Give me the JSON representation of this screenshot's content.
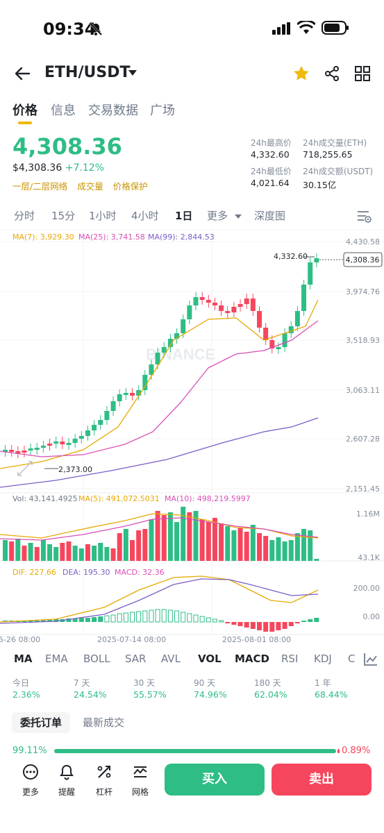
{
  "status_bar": {
    "time": "09:34"
  },
  "header": {
    "pair": "ETH/USDT"
  },
  "tabs": [
    "价格",
    "信息",
    "交易数据",
    "广场"
  ],
  "price": {
    "last": "4,308.36",
    "usd": "$4,308.36",
    "change": "+7.12%",
    "links": [
      "一层/二层网络",
      "成交量",
      "价格保护"
    ]
  },
  "stats": {
    "high_label": "24h最高价",
    "high": "4,332.60",
    "vol_eth_label": "24h成交量(ETH)",
    "vol_eth": "718,255.65",
    "low_label": "24h最低价",
    "low": "4,021.64",
    "vol_usdt_label": "24h成交额(USDT)",
    "vol_usdt": "30.15亿"
  },
  "timeframes": [
    "分时",
    "15分",
    "1小时",
    "4小时",
    "1日",
    "更多",
    "深度图"
  ],
  "chart": {
    "ma_labels": [
      "MA(7): 3,929.30",
      "MA(25): 3,741.58",
      "MA(99): 2,844.53"
    ],
    "y_labels": [
      "4,430.58",
      "3,974.76",
      "3,518.93",
      "3,063.11",
      "2,607.28",
      "2,151.45"
    ],
    "high_marker": "4,332.60",
    "low_marker": "2,373.00",
    "last_tag": "4,308.36",
    "watermark": "BINANCE",
    "vol_labels": [
      "Vol: 43,141.4925",
      "MA(5): 491,072.5031",
      "MA(10): 498,219.5997"
    ],
    "vol_axis": [
      "1.16M",
      "43.1K"
    ],
    "macd_labels": [
      "DIF: 227.66",
      "DEA: 195.30",
      "MACD: 32.36"
    ],
    "macd_axis": [
      "200.00",
      "0.00"
    ],
    "dates": [
      "5-26 08:00",
      "2025-07-14 08:00",
      "2025-08-01 08:00"
    ]
  },
  "indicators": [
    "MA",
    "EMA",
    "BOLL",
    "SAR",
    "AVL",
    "VOL",
    "MACD",
    "RSI",
    "KDJ",
    "C"
  ],
  "performance": [
    {
      "label": "今日",
      "value": "2.36%"
    },
    {
      "label": "7 天",
      "value": "24.54%"
    },
    {
      "label": "30 天",
      "value": "55.57%"
    },
    {
      "label": "90 天",
      "value": "74.96%"
    },
    {
      "label": "180 天",
      "value": "62.04%"
    },
    {
      "label": "1 年",
      "value": "68.44%"
    }
  ],
  "order_tabs": [
    "委托订单",
    "最新成交"
  ],
  "depth": {
    "buy_pct": "99.11%",
    "sell_pct": "0.89%",
    "buy_fraction": 0.9911
  },
  "bottom_nav": [
    "更多",
    "提醒",
    "杠杆",
    "网格"
  ],
  "actions": {
    "buy": "买入",
    "sell": "卖出"
  },
  "colors": {
    "green": "#2ebd85",
    "red": "#f6465d",
    "yellow": "#f0b90b"
  }
}
